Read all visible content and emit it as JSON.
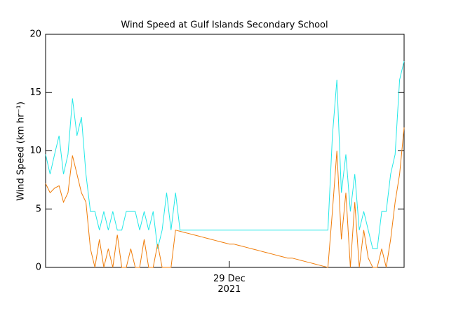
{
  "chart_data": {
    "type": "line",
    "title": "Wind Speed at Gulf Islands Secondary School",
    "y_label": "Wind Speed (km hr⁻¹)",
    "categories": [
      null,
      null,
      null,
      null,
      null,
      null,
      null,
      null,
      null,
      null,
      null,
      null,
      null,
      null,
      null,
      null,
      null,
      null,
      null,
      null,
      null,
      null,
      null,
      null,
      null,
      null,
      null,
      null,
      null,
      null,
      null,
      null,
      null,
      null,
      null,
      null,
      null,
      null,
      null,
      null,
      null,
      "29 Dec\n2021",
      null,
      null,
      null,
      null,
      null,
      null,
      null,
      null,
      null,
      null,
      null,
      null,
      null,
      null,
      null,
      null,
      null,
      null,
      null,
      null,
      null,
      null,
      null,
      null,
      null,
      null,
      null,
      null,
      null,
      null,
      null,
      null,
      null,
      null,
      null,
      null,
      null,
      null,
      null
    ],
    "series": [
      {
        "color": "#22e8e8",
        "values": [
          9.7,
          8,
          9.7,
          11.3,
          8,
          9.7,
          14.5,
          11.3,
          12.9,
          8,
          4.8,
          4.8,
          3.2,
          4.8,
          3.2,
          4.8,
          3.2,
          3.2,
          4.8,
          4.8,
          4.8,
          3.2,
          4.8,
          3.2,
          4.8,
          1.6,
          3.2,
          6.4,
          3.2,
          6.4,
          3.2,
          3.2,
          3.2,
          3.2,
          3.2,
          3.2,
          3.2,
          3.2,
          3.2,
          3.2,
          3.2,
          3.2,
          3.2,
          3.2,
          3.2,
          3.2,
          3.2,
          3.2,
          3.2,
          3.2,
          3.2,
          3.2,
          3.2,
          3.2,
          3.2,
          3.2,
          3.2,
          3.2,
          3.2,
          3.2,
          3.2,
          3.2,
          3.2,
          3.2,
          11.3,
          16.1,
          6.4,
          9.7,
          4.8,
          8,
          3.2,
          4.8,
          3.2,
          1.6,
          1.6,
          4.8,
          4.8,
          8,
          9.7,
          16.1,
          17.7
        ]
      },
      {
        "color": "#f07d0a",
        "values": [
          7.2,
          6.4,
          6.8,
          7,
          5.6,
          6.4,
          9.6,
          8,
          6.4,
          5.6,
          1.6,
          0,
          2.4,
          0,
          1.6,
          0,
          2.8,
          0,
          0,
          1.6,
          0,
          0,
          2.4,
          0,
          0,
          2,
          0,
          0,
          0,
          3.2,
          3.1,
          3,
          2.9,
          2.8,
          2.7,
          2.6,
          2.5,
          2.4,
          2.3,
          2.2,
          2.1,
          2,
          2,
          1.9,
          1.8,
          1.7,
          1.6,
          1.5,
          1.4,
          1.3,
          1.2,
          1.1,
          1,
          0.9,
          0.8,
          0.8,
          0.7,
          0.6,
          0.5,
          0.4,
          0.3,
          0.2,
          0.1,
          0,
          4.8,
          10,
          2.4,
          6.4,
          0,
          5.6,
          0,
          3.2,
          0.8,
          0,
          0,
          1.6,
          0,
          2.4,
          5.6,
          8,
          12
        ]
      }
    ],
    "ylim": [
      0,
      20
    ],
    "yticks": [
      0,
      5,
      10,
      15,
      20
    ]
  }
}
